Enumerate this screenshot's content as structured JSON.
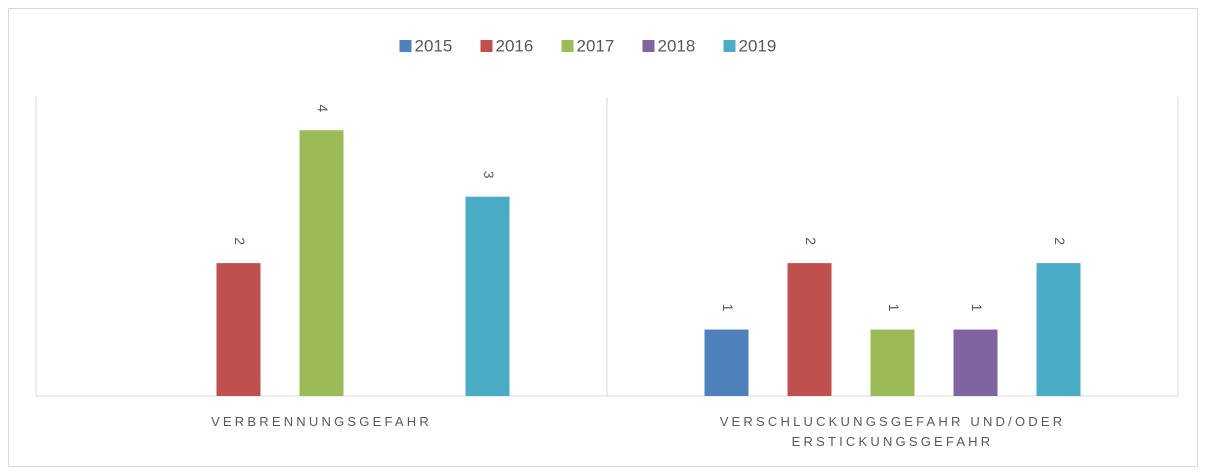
{
  "chart_data": {
    "type": "bar",
    "categories": [
      "VERBRENNUNGSGEFAHR",
      "VERSCHLUCKUNGSGEFAHR UND/ODER ERSTICKUNGSGEFAHR"
    ],
    "series": [
      {
        "name": "2015",
        "color": "#4f81bd",
        "values": [
          null,
          1
        ]
      },
      {
        "name": "2016",
        "color": "#c0504d",
        "values": [
          2,
          2
        ]
      },
      {
        "name": "2017",
        "color": "#9bbb59",
        "values": [
          4,
          1
        ]
      },
      {
        "name": "2018",
        "color": "#8064a2",
        "values": [
          null,
          1
        ]
      },
      {
        "name": "2019",
        "color": "#4bacc6",
        "values": [
          3,
          2
        ]
      }
    ],
    "ylim": [
      0,
      4.5
    ],
    "legend": "top"
  }
}
